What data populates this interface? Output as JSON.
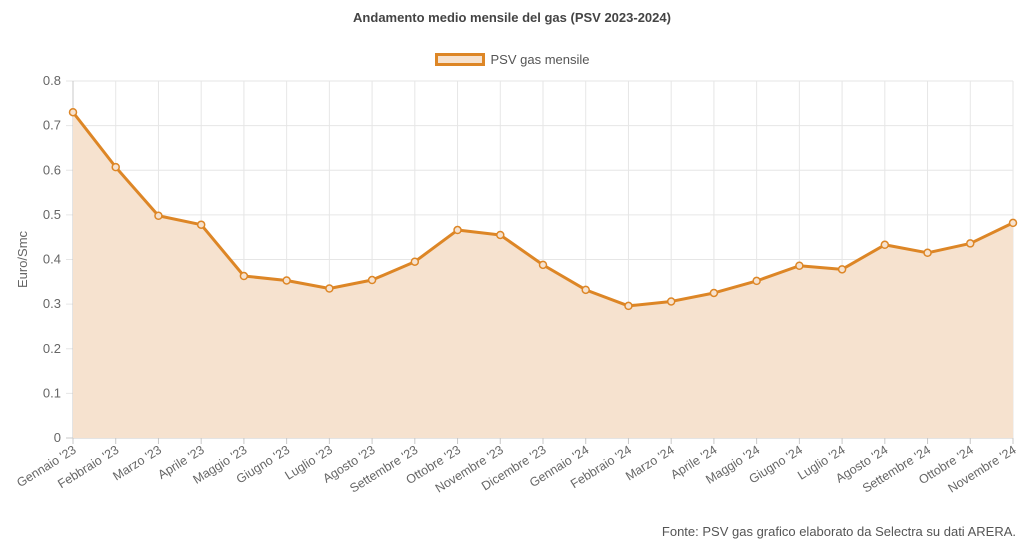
{
  "chart_data": {
    "type": "area",
    "title": "Andamento medio mensile del gas (PSV 2023-2024)",
    "ylabel": "Euro/Smc",
    "xlabel": "",
    "ylim": [
      0,
      0.8
    ],
    "yticks": [
      "0",
      "0.1",
      "0.2",
      "0.3",
      "0.4",
      "0.5",
      "0.6",
      "0.7",
      "0.8"
    ],
    "grid": true,
    "legend_position": "top-center",
    "categories": [
      "Gennaio '23",
      "Febbraio '23",
      "Marzo '23",
      "Aprile '23",
      "Maggio '23",
      "Giugno '23",
      "Luglio '23",
      "Agosto '23",
      "Settembre '23",
      "Ottobre '23",
      "Novembre '23",
      "Dicembre '23",
      "Gennaio '24",
      "Febbraio '24",
      "Marzo '24",
      "Aprile '24",
      "Maggio '24",
      "Giugno '24",
      "Luglio '24",
      "Agosto '24",
      "Settembre '24",
      "Ottobre '24",
      "Novembre '24"
    ],
    "series": [
      {
        "name": "PSV gas mensile",
        "values": [
          0.73,
          0.607,
          0.498,
          0.478,
          0.363,
          0.353,
          0.335,
          0.354,
          0.395,
          0.466,
          0.455,
          0.388,
          0.332,
          0.296,
          0.306,
          0.325,
          0.352,
          0.386,
          0.378,
          0.433,
          0.415,
          0.436,
          0.482
        ]
      }
    ],
    "colors": {
      "line": "#dd8626",
      "fill": "#f6e2cf",
      "grid": "#e6e6e6",
      "axis": "#c8c8c8"
    }
  },
  "source_note": "Fonte: PSV gas grafico elaborato da Selectra su dati ARERA."
}
